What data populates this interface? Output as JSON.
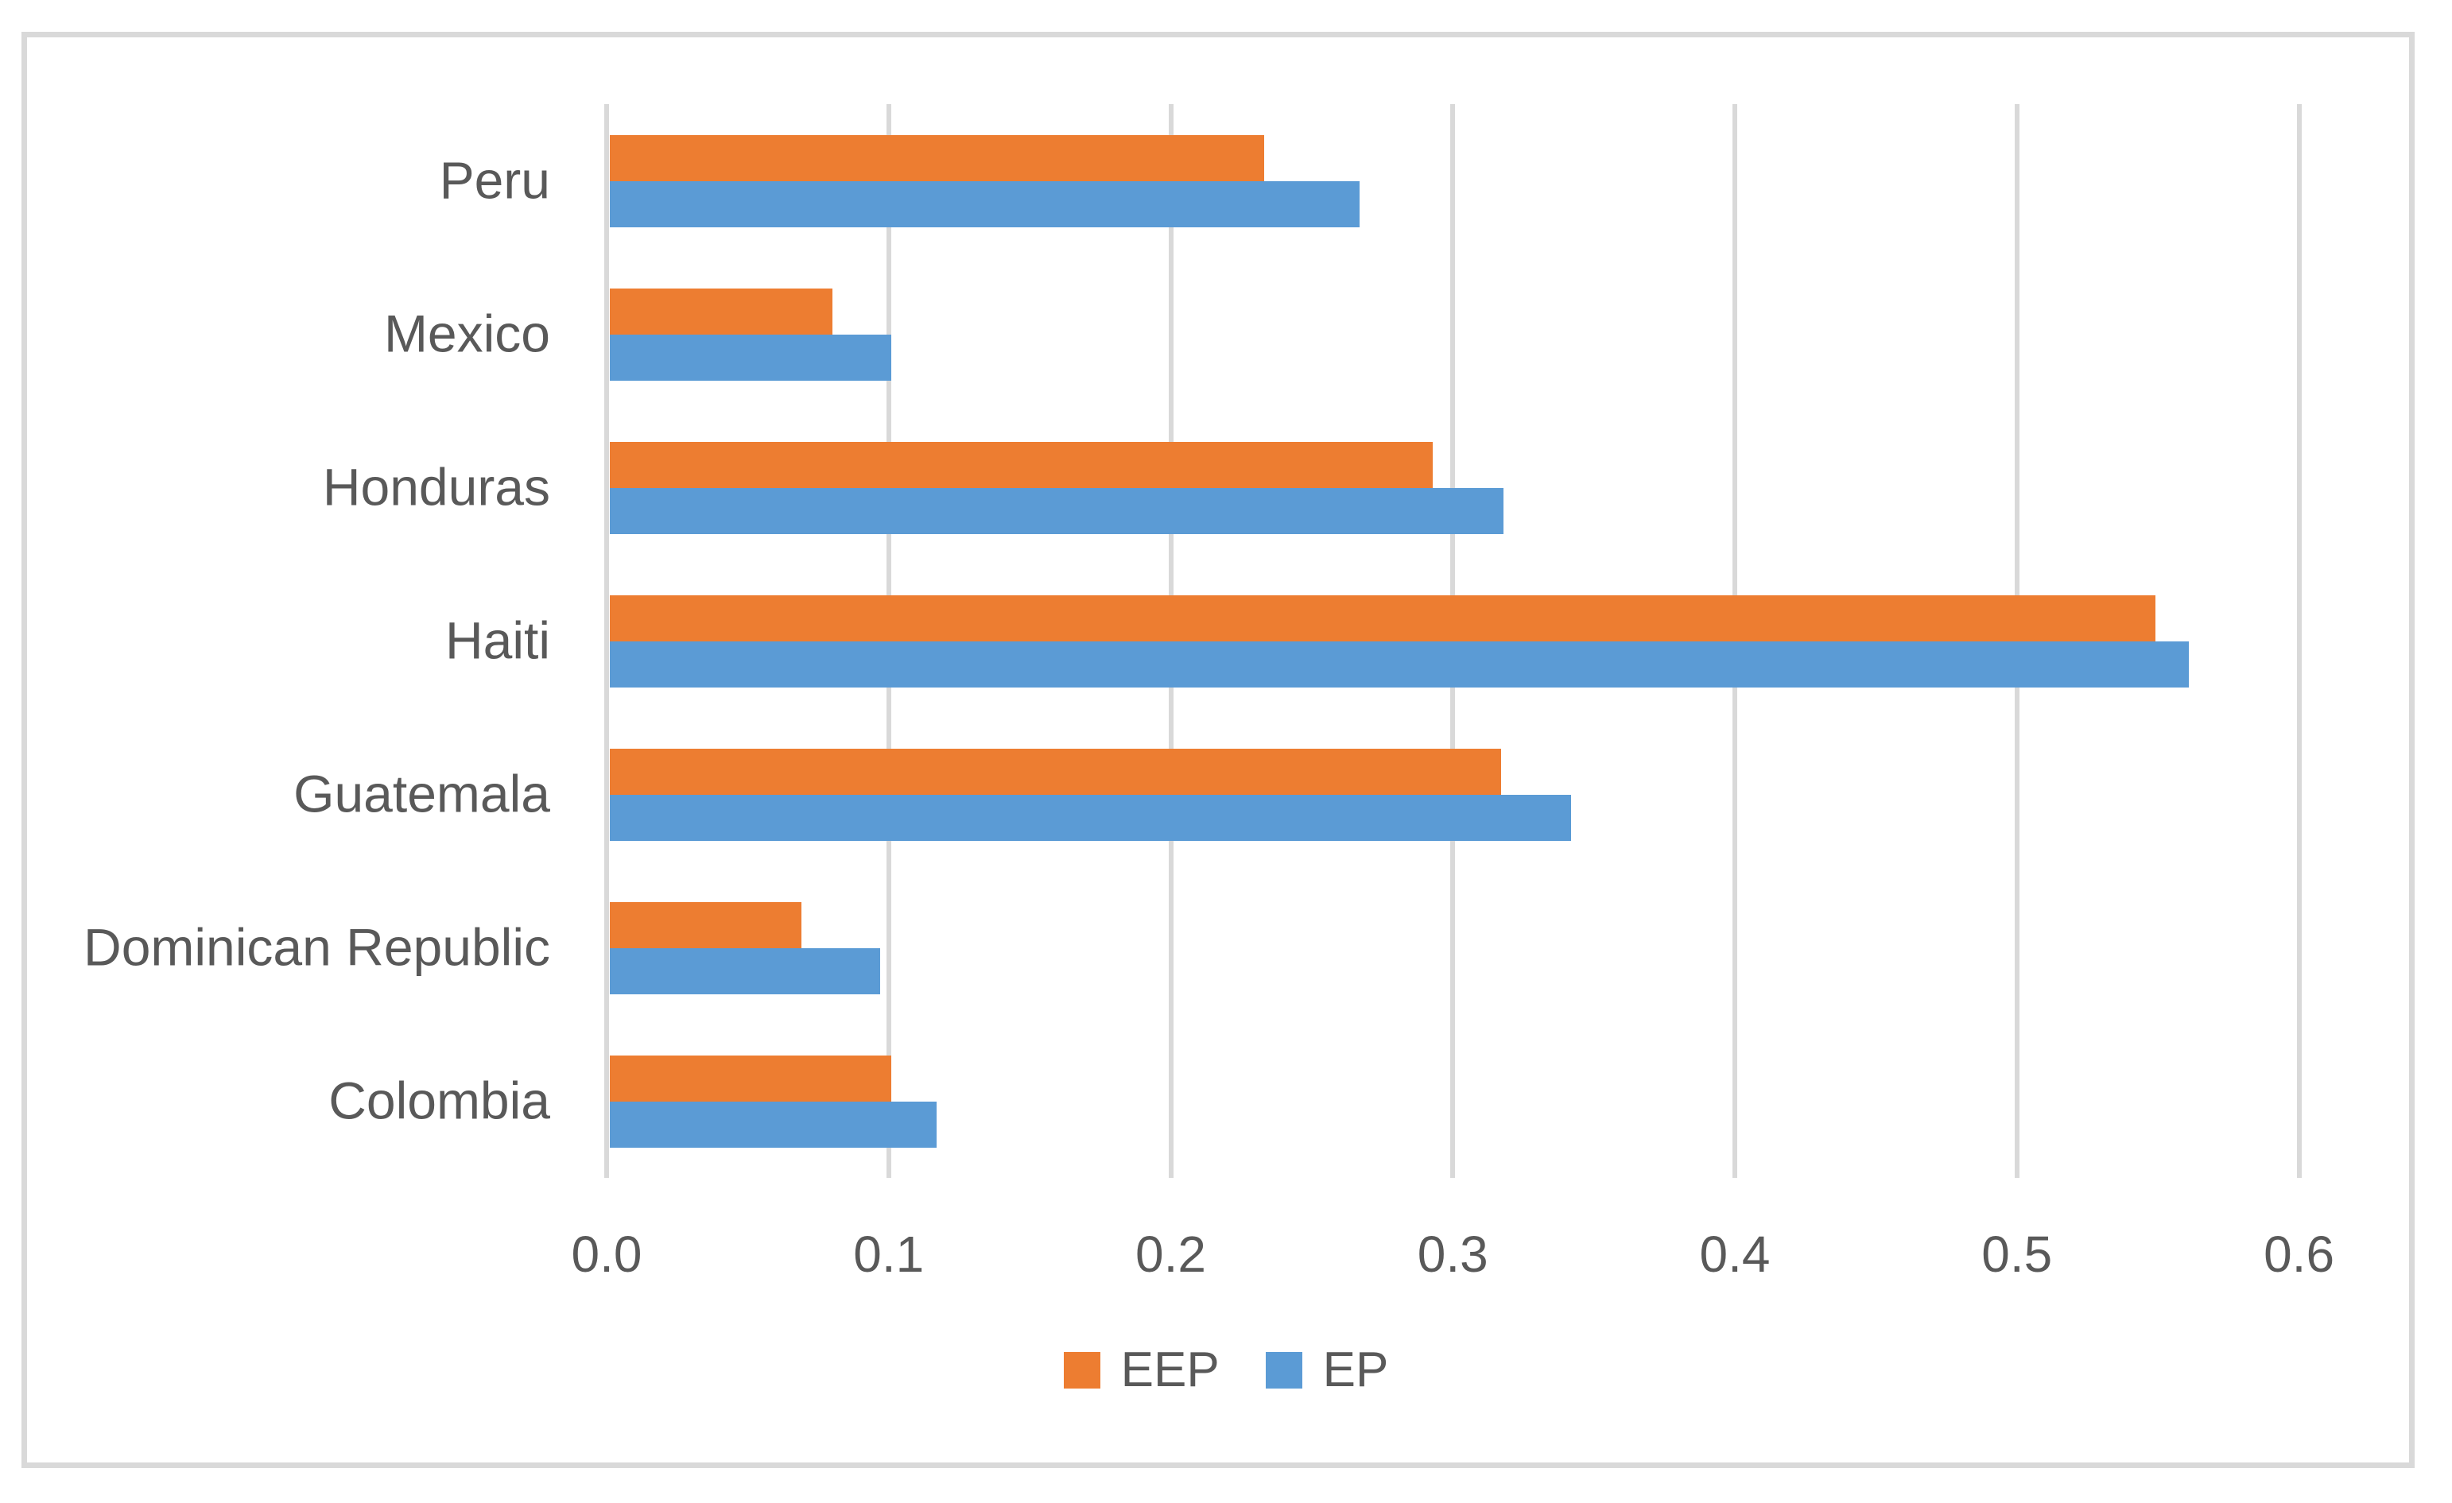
{
  "chart_data": {
    "type": "bar",
    "orientation": "horizontal",
    "title": "",
    "xlabel": "",
    "ylabel": "",
    "categories": [
      "Peru",
      "Mexico",
      "Honduras",
      "Haiti",
      "Guatemala",
      "Dominican Republic",
      "Colombia"
    ],
    "series": [
      {
        "name": "EEP",
        "color": "#ED7D31",
        "values": [
          0.233,
          0.08,
          0.293,
          0.549,
          0.317,
          0.069,
          0.101
        ]
      },
      {
        "name": "EP",
        "color": "#5B9BD5",
        "values": [
          0.267,
          0.101,
          0.318,
          0.561,
          0.342,
          0.097,
          0.117
        ]
      }
    ],
    "xlim": [
      0,
      0.6
    ],
    "tick_labels": [
      "0.0",
      "0.1",
      "0.2",
      "0.3",
      "0.4",
      "0.5",
      "0.6"
    ],
    "grid": "vertical",
    "legend_position": "bottom-center",
    "gridline_color": "#D9D9D9",
    "border_color": "#D9D9D9",
    "text_color": "#595959",
    "background": "#FFFFFF"
  }
}
